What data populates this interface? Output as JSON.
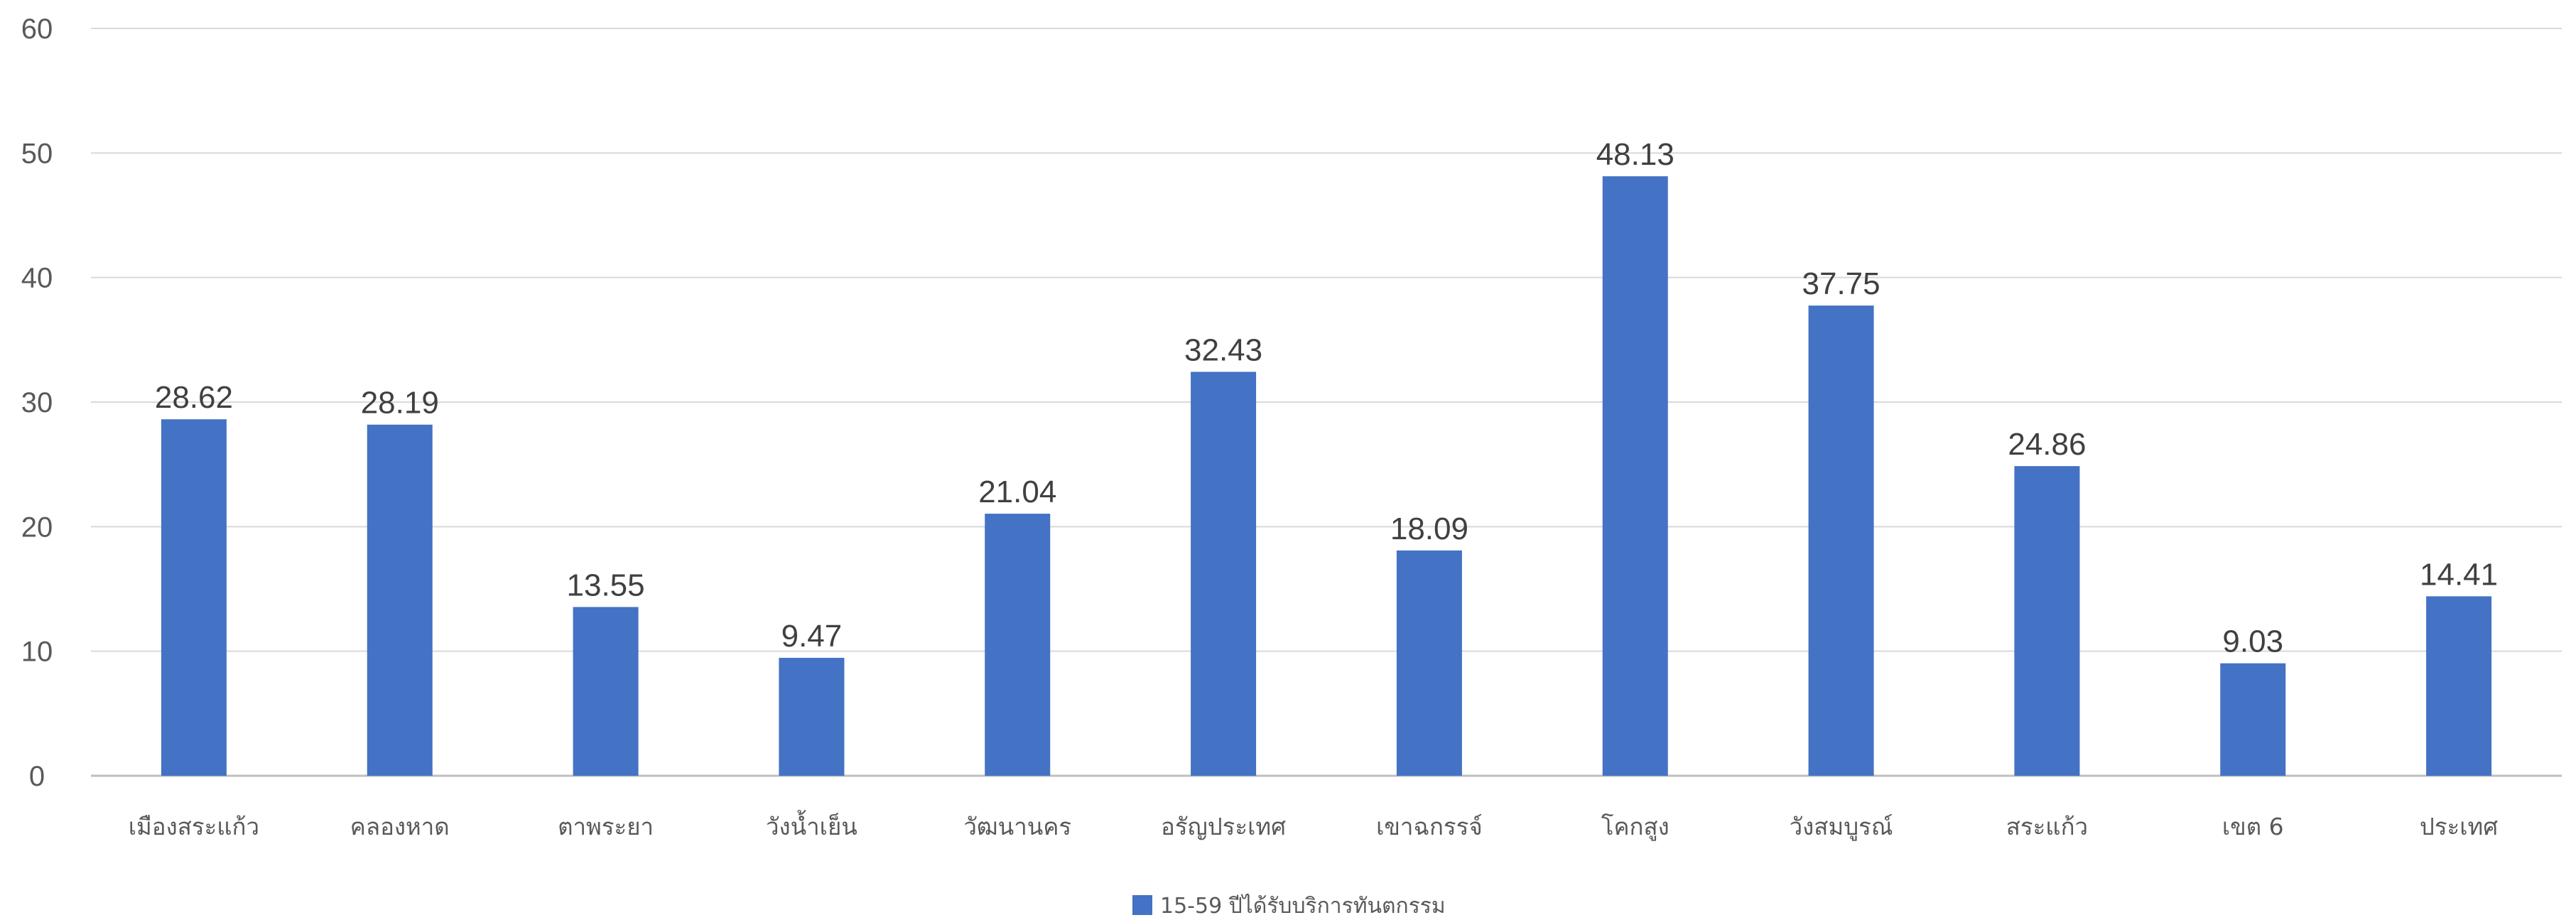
{
  "chart_data": {
    "type": "bar",
    "title": "",
    "xlabel": "",
    "ylabel": "",
    "ylim": [
      0,
      60
    ],
    "yticks": [
      0,
      10,
      20,
      30,
      40,
      50,
      60
    ],
    "grid": true,
    "legend_position": "bottom",
    "categories": [
      "เมืองสระแก้ว",
      "คลองหาด",
      "ตาพระยา",
      "วังน้ำเย็น",
      "วัฒนานคร",
      "อรัญประเทศ",
      "เขาฉกรรจ์",
      "โคกสูง",
      "วังสมบูรณ์",
      "สระแก้ว",
      "เขต 6",
      "ประเทศ"
    ],
    "series": [
      {
        "name": "15-59 ปีได้รับบริการทันตกรรม",
        "color": "#4472C4",
        "values": [
          28.62,
          28.19,
          13.55,
          9.47,
          21.04,
          32.43,
          18.09,
          48.13,
          37.75,
          24.86,
          9.03,
          14.41
        ],
        "labels": [
          "28.62",
          "28.19",
          "13.55",
          "9.47",
          "21.04",
          "32.43",
          "18.09",
          "48.13",
          "37.75",
          "24.86",
          "9.03",
          "14.41"
        ]
      }
    ]
  }
}
